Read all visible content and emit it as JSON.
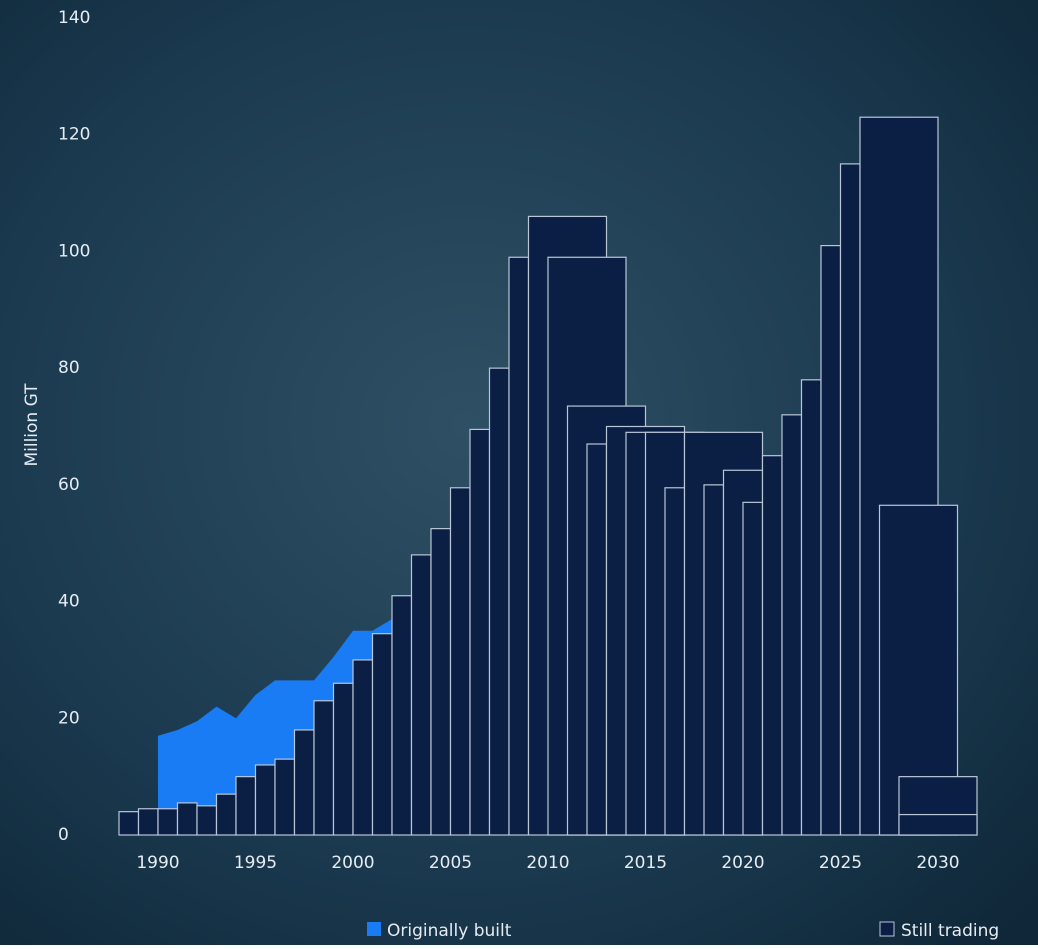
{
  "chart_data": {
    "type": "bar-area",
    "y_label": "Million GT",
    "ylim": [
      0,
      140
    ],
    "yticks": [
      0,
      20,
      40,
      60,
      80,
      100,
      120,
      140
    ],
    "xlim": [
      1988,
      2032
    ],
    "xticks": [
      1990,
      1995,
      2000,
      2005,
      2010,
      2015,
      2020,
      2025,
      2030
    ],
    "area": {
      "name": "Originally built",
      "color": "#1a7cf5",
      "x": [
        1990,
        1991,
        1992,
        1993,
        1994,
        1995,
        1996,
        1997,
        1998,
        1999,
        2000,
        2001,
        2002
      ],
      "values": [
        17,
        18,
        19.5,
        22,
        20,
        24,
        26.5,
        26.5,
        26.5,
        30.5,
        35,
        35,
        37
      ]
    },
    "bars": {
      "name": "Still trading",
      "color": "#0b1f45",
      "edge": "#b9c6d8",
      "x_start": [
        1988,
        1989,
        1990,
        1991,
        1992,
        1993,
        1994,
        1995,
        1996,
        1997,
        1998,
        1999,
        2000,
        2001,
        2002,
        2003,
        2004,
        2005,
        2006,
        2007,
        2008,
        2009,
        2010,
        2011,
        2012,
        2013,
        2014,
        2015,
        2016,
        2017,
        2018,
        2019,
        2020,
        2021,
        2022,
        2023,
        2024,
        2025,
        2026,
        2027,
        2028,
        2028
      ],
      "x_end": [
        1989,
        1990,
        1991,
        1992,
        1993,
        1994,
        1995,
        1996,
        1997,
        1998,
        1999,
        2000,
        2001,
        2002,
        2003,
        2004,
        2005,
        2006,
        2007,
        2008,
        2009,
        2013,
        2014,
        2015,
        2013,
        2017,
        2018,
        2017,
        2017,
        2021,
        2019,
        2021,
        2021,
        2022,
        2023,
        2024,
        2025,
        2026,
        2030,
        2031,
        2032,
        2032
      ],
      "values": [
        4,
        4.5,
        4.5,
        5.5,
        5,
        7,
        10,
        12,
        13,
        18,
        23,
        26,
        30,
        34.5,
        41,
        48,
        52.5,
        59.5,
        69.5,
        80,
        99,
        106,
        99,
        73.5,
        67,
        70,
        69,
        69,
        59.5,
        69,
        60,
        62.5,
        57,
        65,
        72,
        78,
        101,
        115,
        123,
        56.5,
        10,
        3.5
      ]
    }
  }
}
